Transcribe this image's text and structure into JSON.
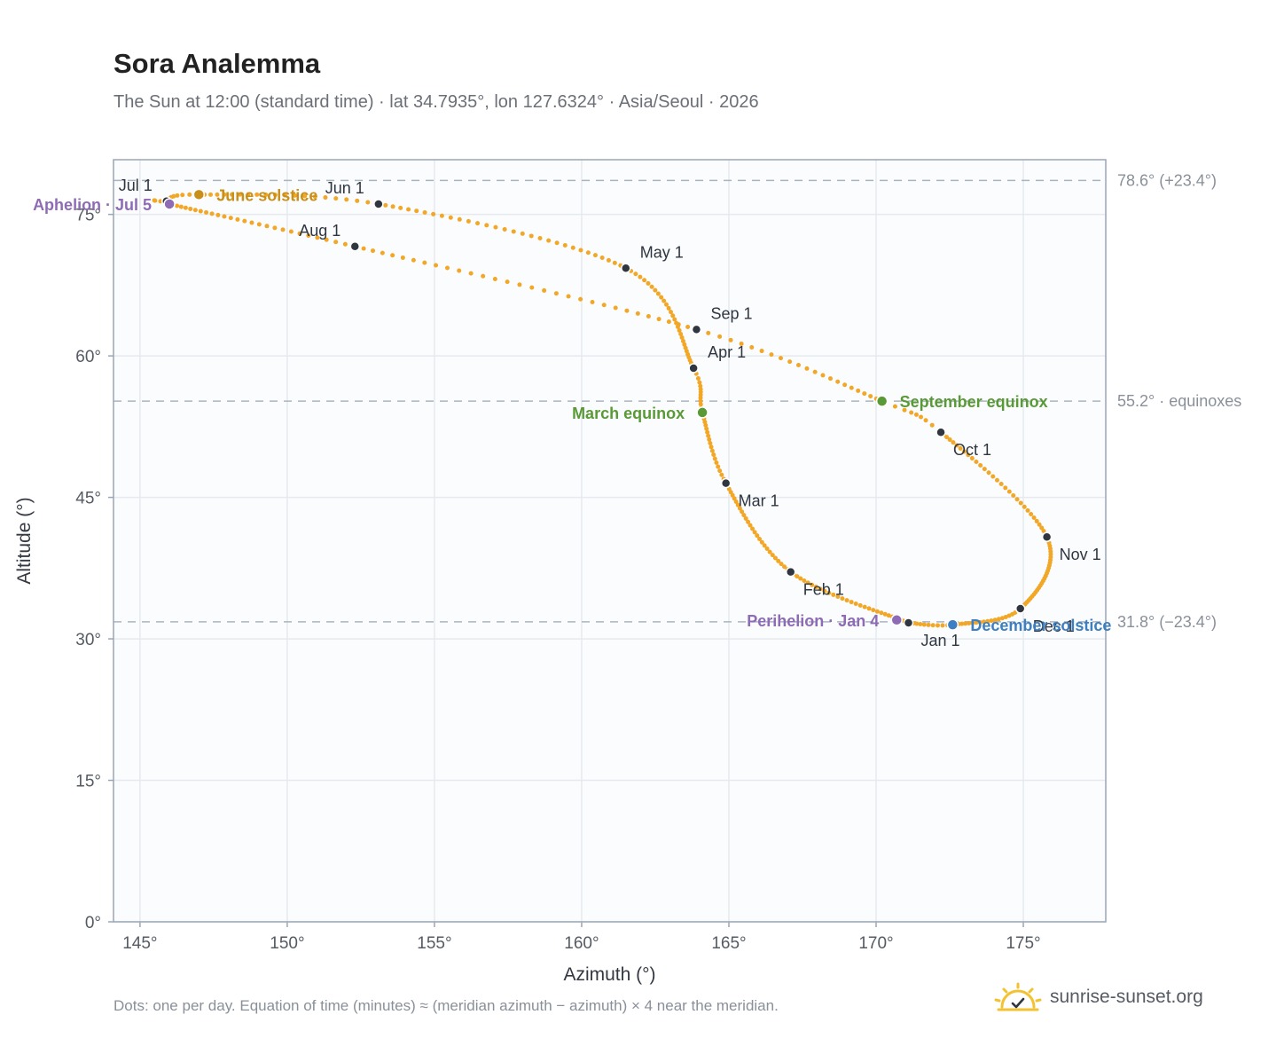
{
  "header": {
    "title": "Sora Analemma",
    "subtitle": "The Sun at 12:00 (standard time) · lat 34.7935°, lon 127.6324° · Asia/Seoul · 2026"
  },
  "footer": {
    "note": "Dots: one per day. Equation of time (minutes) ≈ (meridian azimuth − azimuth) × 4 near the meridian.",
    "brand": "sunrise-sunset.org"
  },
  "colors": {
    "curve": "#f2a726",
    "month_marker": "#2f3640",
    "solstice_june": "#c8901a",
    "solstice_december": "#3d7fc0",
    "equinox": "#5a9a36",
    "apsis": "#8e6bb5",
    "reference_line": "#aab4c0",
    "grid": "#e6eaef",
    "plot_bg": "#fafcfe",
    "frame": "#9aa6b4"
  },
  "chart_data": {
    "type": "scatter",
    "xlabel": "Azimuth (°)",
    "ylabel": "Altitude (°)",
    "xlim": [
      144.1,
      177.8
    ],
    "ylim": [
      0,
      80.8
    ],
    "grid": true,
    "x_ticks": [
      {
        "value": 145,
        "label": "145°"
      },
      {
        "value": 150,
        "label": "150°"
      },
      {
        "value": 155,
        "label": "155°"
      },
      {
        "value": 160,
        "label": "160°"
      },
      {
        "value": 165,
        "label": "165°"
      },
      {
        "value": 170,
        "label": "170°"
      },
      {
        "value": 175,
        "label": "175°"
      }
    ],
    "y_ticks": [
      {
        "value": 0,
        "label": "0°"
      },
      {
        "value": 15,
        "label": "15°"
      },
      {
        "value": 30,
        "label": "30°"
      },
      {
        "value": 45,
        "label": "45°"
      },
      {
        "value": 60,
        "label": "60°"
      },
      {
        "value": 75,
        "label": "75°"
      }
    ],
    "reference_lines": [
      {
        "value": 78.6,
        "label": "78.6° (+23.4°)"
      },
      {
        "value": 55.2,
        "label": "55.2° · equinoxes"
      },
      {
        "value": 31.8,
        "label": "31.8° (−23.4°)"
      }
    ],
    "curve_anchors": [
      {
        "day": 1,
        "az": 171.1,
        "alt": 31.7
      },
      {
        "day": 32,
        "az": 167.1,
        "alt": 37.1
      },
      {
        "day": 60,
        "az": 164.9,
        "alt": 46.5
      },
      {
        "day": 79,
        "az": 164.1,
        "alt": 54.0
      },
      {
        "day": 91,
        "az": 163.8,
        "alt": 58.7
      },
      {
        "day": 121,
        "az": 161.5,
        "alt": 69.3
      },
      {
        "day": 152,
        "az": 153.1,
        "alt": 76.1
      },
      {
        "day": 172,
        "az": 147.0,
        "alt": 77.1
      },
      {
        "day": 182,
        "az": 145.9,
        "alt": 76.4
      },
      {
        "day": 186,
        "az": 146.0,
        "alt": 76.1
      },
      {
        "day": 213,
        "az": 152.3,
        "alt": 71.6
      },
      {
        "day": 244,
        "az": 163.9,
        "alt": 62.8
      },
      {
        "day": 266,
        "az": 170.2,
        "alt": 55.2
      },
      {
        "day": 274,
        "az": 172.2,
        "alt": 51.9
      },
      {
        "day": 305,
        "az": 175.8,
        "alt": 40.8
      },
      {
        "day": 335,
        "az": 174.9,
        "alt": 33.2
      },
      {
        "day": 355,
        "az": 172.6,
        "alt": 31.5
      },
      {
        "day": 366,
        "az": 171.1,
        "alt": 31.7
      }
    ],
    "month_markers": [
      {
        "label": "Jan 1",
        "az": 171.1,
        "alt": 31.7,
        "anchor": "below-right"
      },
      {
        "label": "Feb 1",
        "az": 167.1,
        "alt": 37.1,
        "anchor": "below-right"
      },
      {
        "label": "Mar 1",
        "az": 164.9,
        "alt": 46.5,
        "anchor": "below-right"
      },
      {
        "label": "Apr 1",
        "az": 163.8,
        "alt": 58.7,
        "anchor": "above-right"
      },
      {
        "label": "May 1",
        "az": 161.5,
        "alt": 69.3,
        "anchor": "above-right"
      },
      {
        "label": "Jun 1",
        "az": 153.1,
        "alt": 76.1,
        "anchor": "above-left"
      },
      {
        "label": "Jul 1",
        "az": 145.9,
        "alt": 76.4,
        "anchor": "above-left"
      },
      {
        "label": "Aug 1",
        "az": 152.3,
        "alt": 71.6,
        "anchor": "above-left"
      },
      {
        "label": "Sep 1",
        "az": 163.9,
        "alt": 62.8,
        "anchor": "above-right"
      },
      {
        "label": "Oct 1",
        "az": 172.2,
        "alt": 51.9,
        "anchor": "below-right"
      },
      {
        "label": "Nov 1",
        "az": 175.8,
        "alt": 40.8,
        "anchor": "below-right"
      },
      {
        "label": "Dec 1",
        "az": 174.9,
        "alt": 33.2,
        "anchor": "below-right"
      }
    ],
    "events": [
      {
        "label": "June solstice",
        "az": 147.0,
        "alt": 77.1,
        "color_key": "solstice_june",
        "anchor": "right"
      },
      {
        "label": "December solstice",
        "az": 172.6,
        "alt": 31.5,
        "color_key": "solstice_december",
        "anchor": "right"
      },
      {
        "label": "March equinox",
        "az": 164.1,
        "alt": 54.0,
        "color_key": "equinox",
        "anchor": "left"
      },
      {
        "label": "September equinox",
        "az": 170.2,
        "alt": 55.2,
        "color_key": "equinox",
        "anchor": "right"
      },
      {
        "label": "Aphelion · Jul 5",
        "az": 146.0,
        "alt": 76.1,
        "color_key": "apsis",
        "anchor": "left"
      },
      {
        "label": "Perihelion · Jan 4",
        "az": 170.7,
        "alt": 32.0,
        "color_key": "apsis",
        "anchor": "left"
      }
    ]
  }
}
